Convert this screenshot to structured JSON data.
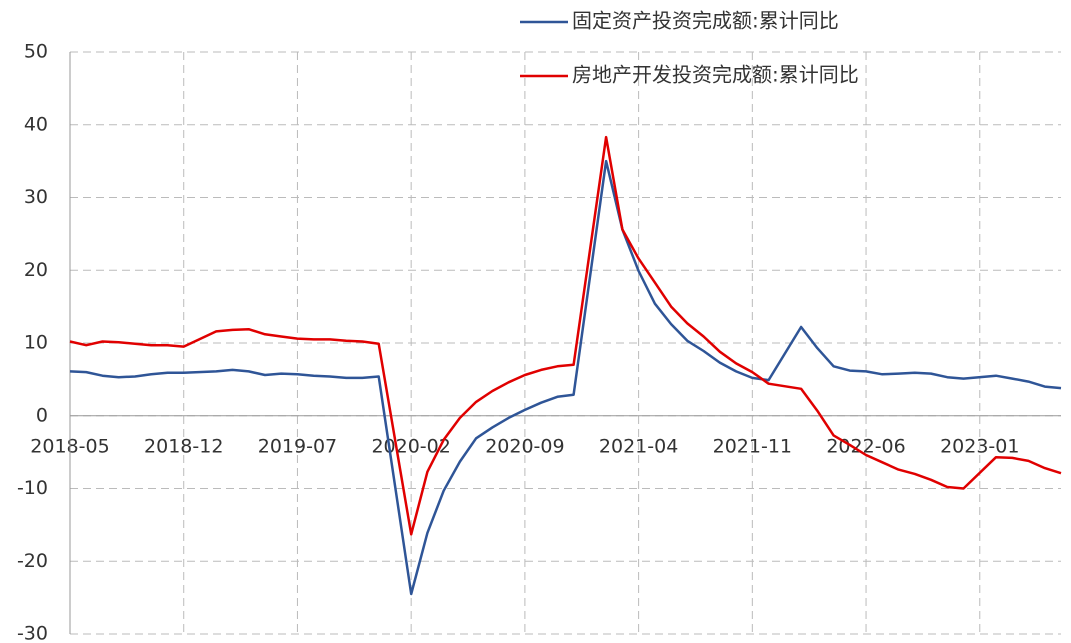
{
  "chart_data": {
    "type": "line",
    "x": [
      "2018-05",
      "2018-06",
      "2018-07",
      "2018-08",
      "2018-09",
      "2018-10",
      "2018-11",
      "2018-12",
      "2019-02",
      "2019-03",
      "2019-04",
      "2019-05",
      "2019-06",
      "2019-07",
      "2019-08",
      "2019-09",
      "2019-10",
      "2019-11",
      "2019-12",
      "2020-02",
      "2020-03",
      "2020-04",
      "2020-05",
      "2020-06",
      "2020-07",
      "2020-08",
      "2020-09",
      "2020-10",
      "2020-11",
      "2020-12",
      "2021-02",
      "2021-03",
      "2021-04",
      "2021-05",
      "2021-06",
      "2021-07",
      "2021-08",
      "2021-09",
      "2021-10",
      "2021-11",
      "2021-12",
      "2022-02",
      "2022-03",
      "2022-04",
      "2022-05",
      "2022-06",
      "2022-07",
      "2022-08",
      "2022-09",
      "2022-10",
      "2022-11",
      "2022-12",
      "2023-02",
      "2023-03",
      "2023-04",
      "2023-05",
      "2023-06"
    ],
    "xlim": [
      "2018-05",
      "2023-06"
    ],
    "xticks": [
      "2018-05",
      "2018-12",
      "2019-07",
      "2020-02",
      "2020-09",
      "2021-04",
      "2021-11",
      "2022-06",
      "2023-01"
    ],
    "series": [
      {
        "name": "固定资产投资完成额:累计同比",
        "color": "#2f5597",
        "values": [
          6.1,
          6.0,
          5.5,
          5.3,
          5.4,
          5.7,
          5.9,
          5.9,
          6.1,
          6.3,
          6.1,
          5.6,
          5.8,
          5.7,
          5.5,
          5.4,
          5.2,
          5.2,
          5.4,
          -24.5,
          -16.1,
          -10.3,
          -6.3,
          -3.1,
          -1.6,
          -0.3,
          0.8,
          1.8,
          2.6,
          2.9,
          35.0,
          25.6,
          19.9,
          15.4,
          12.6,
          10.3,
          8.9,
          7.3,
          6.1,
          5.2,
          4.9,
          12.2,
          9.3,
          6.8,
          6.2,
          6.1,
          5.7,
          5.8,
          5.9,
          5.8,
          5.3,
          5.1,
          5.5,
          5.1,
          4.7,
          4.0,
          3.8
        ]
      },
      {
        "name": "房地产开发投资完成额:累计同比",
        "color": "#e00000",
        "values": [
          10.2,
          9.7,
          10.2,
          10.1,
          9.9,
          9.7,
          9.7,
          9.5,
          11.6,
          11.8,
          11.9,
          11.2,
          10.9,
          10.6,
          10.5,
          10.5,
          10.3,
          10.2,
          9.9,
          -16.3,
          -7.7,
          -3.3,
          -0.3,
          1.9,
          3.4,
          4.6,
          5.6,
          6.3,
          6.8,
          7.0,
          38.3,
          25.6,
          21.6,
          18.3,
          15.0,
          12.7,
          10.9,
          8.8,
          7.2,
          6.0,
          4.4,
          3.7,
          0.7,
          -2.7,
          -4.0,
          -5.4,
          -6.4,
          -7.4,
          -8.0,
          -8.8,
          -9.8,
          -10.0,
          -5.7,
          -5.8,
          -6.2,
          -7.2,
          -7.9
        ]
      }
    ],
    "ylim": [
      -30,
      50
    ],
    "yticks": [
      -30,
      -20,
      -10,
      0,
      10,
      20,
      30,
      40,
      50
    ],
    "grid": true
  }
}
